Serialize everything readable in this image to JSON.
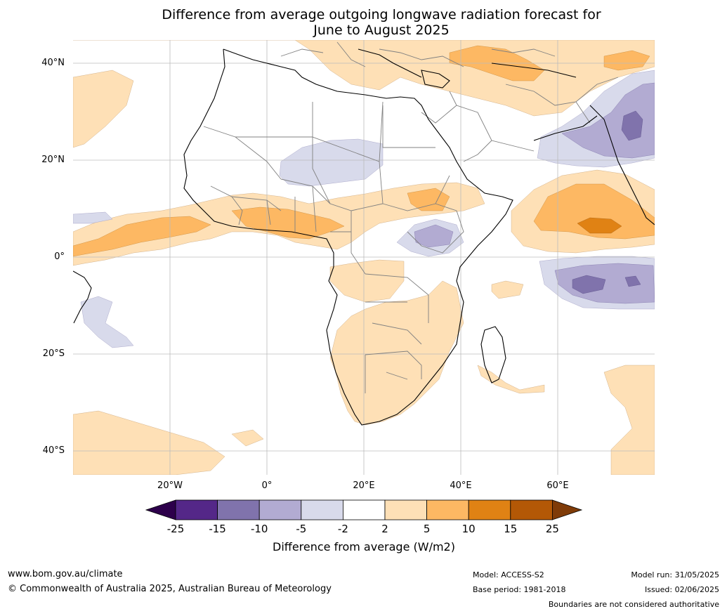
{
  "title_line1": "Difference from average outgoing longwave radiation forecast for",
  "title_line2": "June to August 2025",
  "latitude_labels": [
    "40°N",
    "20°N",
    "0°",
    "20°S",
    "40°S"
  ],
  "longitude_labels": [
    "20°W",
    "0°",
    "20°E",
    "40°E",
    "60°E"
  ],
  "colorbar": {
    "ticks": [
      "-25",
      "-15",
      "-10",
      "-5",
      "-2",
      "2",
      "5",
      "10",
      "15",
      "25"
    ],
    "colors": {
      "extend_low": "#2d004b",
      "bin_-25_-15": "#542788",
      "bin_-15_-10": "#8073ac",
      "bin_-10_-5": "#b2abd2",
      "bin_-5_-2": "#d8daeb",
      "bin_-2_2": "#ffffff",
      "bin_2_5": "#fee0b6",
      "bin_5_10": "#fdb863",
      "bin_10_15": "#e08214",
      "bin_15_25": "#b35806",
      "extend_high": "#7f3b08"
    },
    "label": "Difference from average (W/m2)"
  },
  "footer": {
    "website": "www.bom.gov.au/climate",
    "copyright": "© Commonwealth of Australia 2025, Australian Bureau of Meteorology",
    "model": "Model: ACCESS-S2",
    "base_period": "Base period: 1981-2018",
    "model_run": "Model run: 31/05/2025",
    "issued": "Issued: 02/06/2025",
    "disclaimer": "Boundaries are not considered authoritative"
  }
}
